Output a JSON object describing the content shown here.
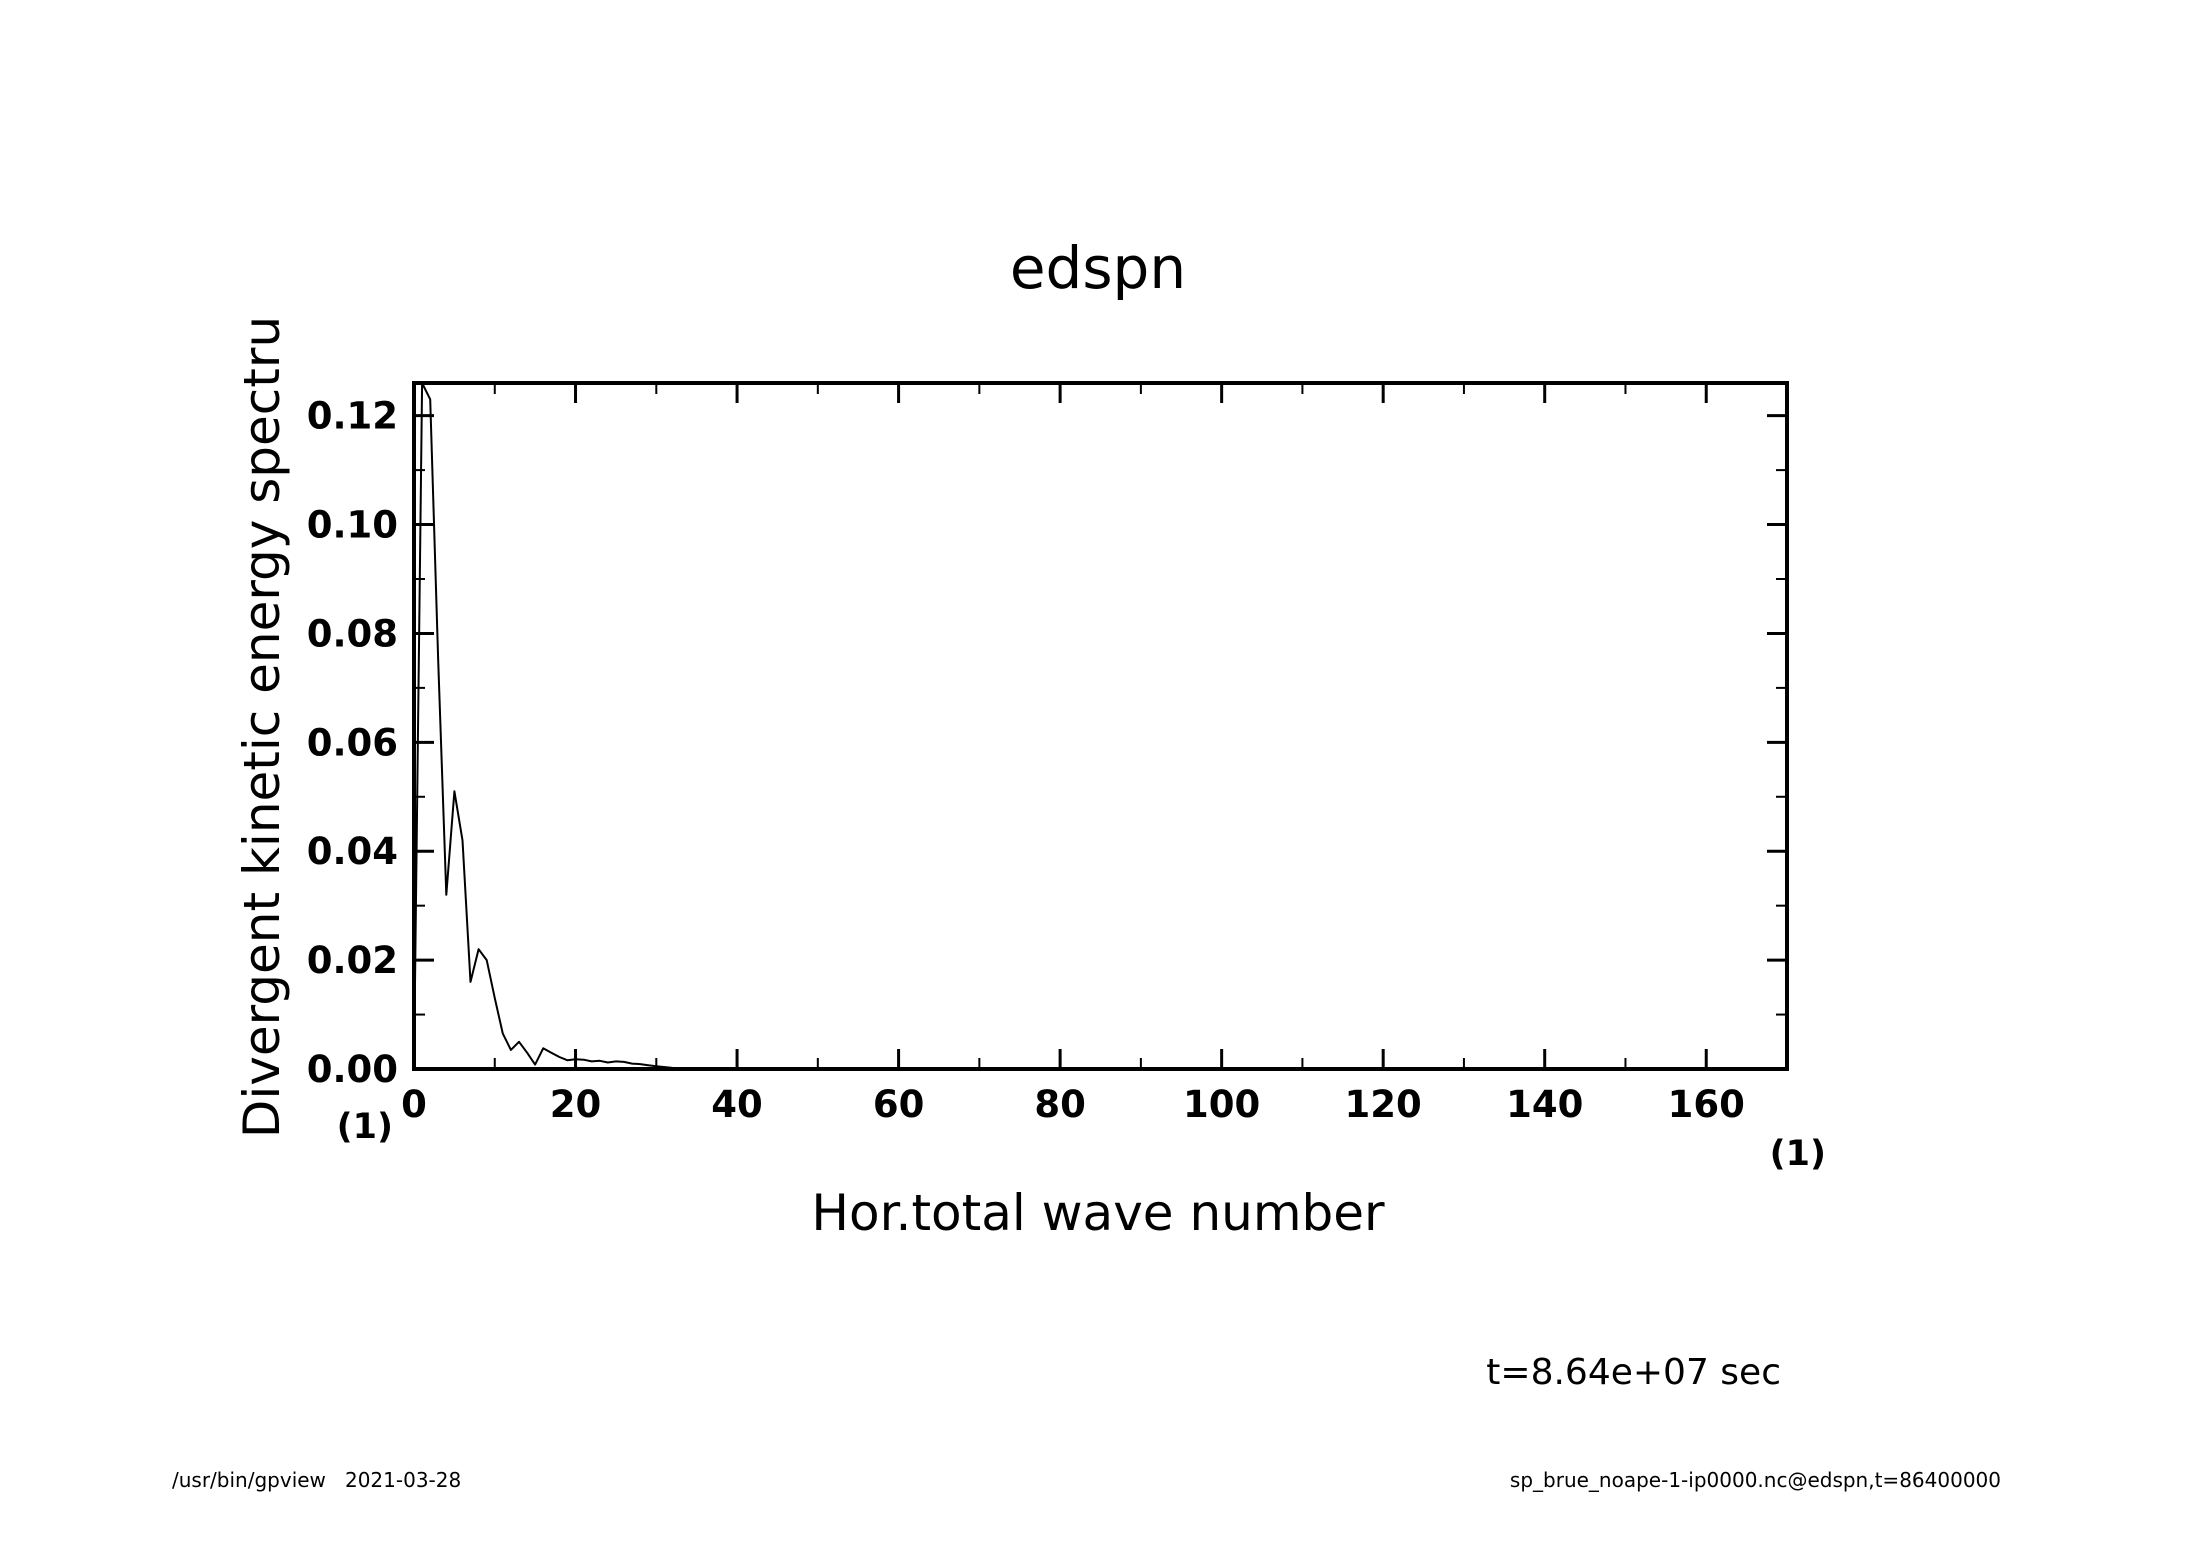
{
  "chart_data": {
    "type": "line",
    "title": "edspn",
    "xlabel": "Hor.total wave number",
    "ylabel": "Divergent kinetic energy spectru",
    "x_unit": "(1)",
    "y_unit": "(1)",
    "xlim": [
      0,
      170
    ],
    "ylim": [
      0,
      0.126
    ],
    "x_ticks": [
      "0",
      "20",
      "40",
      "60",
      "80",
      "100",
      "120",
      "140",
      "160"
    ],
    "y_ticks": [
      "0.00",
      "0.02",
      "0.04",
      "0.06",
      "0.08",
      "0.10",
      "0.12"
    ],
    "grid": false,
    "series": [
      {
        "x": [
          0,
          1,
          2,
          3,
          4,
          5,
          6,
          7,
          8,
          9,
          10,
          11,
          12,
          13,
          14,
          15,
          16,
          17,
          18,
          19,
          20,
          21,
          22,
          23,
          24,
          25,
          26,
          27,
          28,
          29,
          30,
          32,
          34,
          36,
          40,
          50,
          60,
          80,
          100,
          120,
          140,
          160,
          170
        ],
        "y": [
          0.0,
          0.126,
          0.123,
          0.075,
          0.032,
          0.051,
          0.042,
          0.016,
          0.022,
          0.02,
          0.013,
          0.0065,
          0.0035,
          0.005,
          0.003,
          0.0008,
          0.0038,
          0.003,
          0.0022,
          0.0016,
          0.0018,
          0.0017,
          0.0014,
          0.0015,
          0.0012,
          0.0014,
          0.0013,
          0.001,
          0.0009,
          0.0007,
          0.0005,
          0.0002,
          0.0001,
          5e-05,
          0.0,
          0.0,
          0.0,
          0.0,
          0.0,
          0.0,
          0.0,
          0.0,
          0.0
        ]
      }
    ]
  },
  "annotations": {
    "time_label": "t=8.64e+07 sec",
    "footer_left": "/usr/bin/gpview   2021-03-28",
    "footer_right": "sp_brue_noape-1-ip0000.nc@edspn,t=86400000"
  }
}
